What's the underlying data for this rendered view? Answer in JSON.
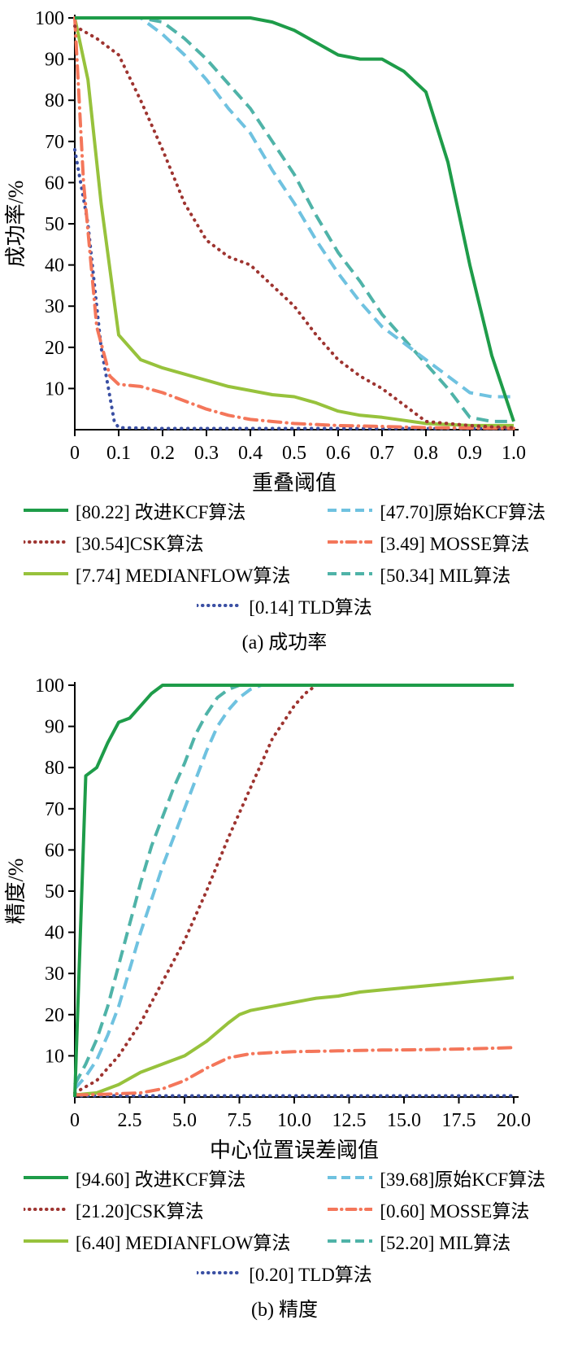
{
  "chart_data": [
    {
      "type": "line",
      "caption": "(a) 成功率",
      "xlabel": "重叠阈值",
      "ylabel": "成功率/%",
      "xlim": [
        0,
        1.0
      ],
      "ylim": [
        0,
        100
      ],
      "grid": false,
      "legend_position": "below",
      "xticks": {
        "values": [
          0,
          0.1,
          0.2,
          0.3,
          0.4,
          0.5,
          0.6,
          0.7,
          0.8,
          0.9,
          1.0
        ],
        "labels": [
          "0",
          "0.1",
          "0.2",
          "0.3",
          "0.4",
          "0.5",
          "0.6",
          "0.7",
          "0.8",
          "0.9",
          "1.0"
        ]
      },
      "yticks": {
        "values": [
          10,
          20,
          30,
          40,
          50,
          60,
          70,
          80,
          90,
          100
        ],
        "labels": [
          "10",
          "20",
          "30",
          "40",
          "50",
          "60",
          "70",
          "80",
          "90",
          "100"
        ]
      },
      "series": [
        {
          "name": "改进KCF算法",
          "legend": "[80.22] 改进KCF算法",
          "auc": 80.22,
          "color": "#1e9c49",
          "style": "solid",
          "x": [
            0,
            0.05,
            0.1,
            0.15,
            0.2,
            0.25,
            0.3,
            0.35,
            0.4,
            0.45,
            0.5,
            0.55,
            0.6,
            0.65,
            0.7,
            0.75,
            0.8,
            0.85,
            0.9,
            0.95,
            1.0
          ],
          "y": [
            100,
            100,
            100,
            100,
            100,
            100,
            100,
            100,
            100,
            99,
            97,
            94,
            91,
            90,
            90,
            87,
            82,
            65,
            40,
            18,
            2
          ]
        },
        {
          "name": "原始KCF算法",
          "legend": "[47.70]原始KCF算法",
          "auc": 47.7,
          "color": "#6fc2e0",
          "style": "dashed",
          "x": [
            0,
            0.05,
            0.1,
            0.15,
            0.2,
            0.25,
            0.3,
            0.35,
            0.4,
            0.45,
            0.5,
            0.55,
            0.6,
            0.65,
            0.7,
            0.75,
            0.8,
            0.85,
            0.9,
            0.95,
            1.0
          ],
          "y": [
            100,
            100,
            100,
            100,
            96,
            91,
            85,
            78,
            72,
            63,
            55,
            46,
            38,
            31,
            25,
            21,
            17,
            13,
            9,
            8,
            8
          ]
        },
        {
          "name": "CSK算法",
          "legend": "[30.54]CSK算法",
          "auc": 30.54,
          "color": "#9e3430",
          "style": "dotted",
          "x": [
            0,
            0.05,
            0.1,
            0.15,
            0.2,
            0.25,
            0.3,
            0.35,
            0.4,
            0.45,
            0.5,
            0.55,
            0.6,
            0.65,
            0.7,
            0.75,
            0.8,
            0.85,
            0.9,
            0.95,
            1.0
          ],
          "y": [
            98,
            95,
            91,
            80,
            68,
            55,
            46,
            42,
            40,
            35,
            30,
            23,
            17,
            13,
            10,
            6,
            2,
            1.5,
            1,
            0.7,
            0.5
          ]
        },
        {
          "name": "MOSSE算法",
          "legend": "[3.49] MOSSE算法",
          "auc": 3.49,
          "color": "#f4765a",
          "style": "dashdot",
          "x": [
            0,
            0.02,
            0.05,
            0.08,
            0.1,
            0.15,
            0.2,
            0.25,
            0.3,
            0.35,
            0.4,
            0.5,
            0.6,
            0.7,
            0.8,
            0.9,
            1.0
          ],
          "y": [
            100,
            60,
            25,
            13,
            11,
            10.5,
            9,
            7,
            5,
            3.5,
            2.5,
            1.5,
            1,
            0.8,
            0.5,
            0.4,
            0.3
          ]
        },
        {
          "name": "MEDIANFLOW算法",
          "legend": "[7.74] MEDIANFLOW算法",
          "auc": 7.74,
          "color": "#97c23c",
          "style": "solid",
          "x": [
            0,
            0.03,
            0.06,
            0.1,
            0.15,
            0.2,
            0.25,
            0.3,
            0.35,
            0.4,
            0.45,
            0.5,
            0.55,
            0.6,
            0.65,
            0.7,
            0.8,
            0.9,
            1.0
          ],
          "y": [
            100,
            85,
            55,
            23,
            17,
            15,
            13.5,
            12,
            10.5,
            9.5,
            8.5,
            8,
            6.5,
            4.5,
            3.5,
            3,
            1.5,
            1,
            1
          ]
        },
        {
          "name": "MIL算法",
          "legend": "[50.34] MIL算法",
          "auc": 50.34,
          "color": "#4fb3a8",
          "style": "dashed",
          "x": [
            0,
            0.05,
            0.1,
            0.15,
            0.2,
            0.25,
            0.3,
            0.35,
            0.4,
            0.45,
            0.5,
            0.55,
            0.6,
            0.65,
            0.7,
            0.75,
            0.8,
            0.85,
            0.9,
            0.95,
            1.0
          ],
          "y": [
            100,
            100,
            100,
            100,
            99,
            95,
            90,
            84,
            78,
            70,
            62,
            52,
            43,
            36,
            28,
            22,
            16,
            10,
            3,
            2,
            2
          ]
        },
        {
          "name": "TLD算法",
          "legend": "[0.14] TLD算法",
          "auc": 0.14,
          "color": "#3a4fa3",
          "style": "dotted",
          "x": [
            0,
            0.03,
            0.06,
            0.09,
            0.1,
            0.2,
            1.0
          ],
          "y": [
            68,
            50,
            20,
            2,
            0.5,
            0.3,
            0.3
          ]
        }
      ]
    },
    {
      "type": "line",
      "caption": "(b) 精度",
      "xlabel": "中心位置误差阈值",
      "ylabel": "精度/%",
      "xlim": [
        0,
        20
      ],
      "ylim": [
        0,
        100
      ],
      "grid": false,
      "legend_position": "below",
      "xticks": {
        "values": [
          0,
          2.5,
          5,
          7.5,
          10,
          12.5,
          15,
          17.5,
          20
        ],
        "labels": [
          "0",
          "2.5",
          "5.0",
          "7.5",
          "10.0",
          "12.5",
          "15.0",
          "17.5",
          "20.0"
        ]
      },
      "yticks": {
        "values": [
          10,
          20,
          30,
          40,
          50,
          60,
          70,
          80,
          90,
          100
        ],
        "labels": [
          "10",
          "20",
          "30",
          "40",
          "50",
          "60",
          "70",
          "80",
          "90",
          "100"
        ]
      },
      "series": [
        {
          "name": "改进KCF算法",
          "legend": "[94.60] 改进KCF算法",
          "auc": 94.6,
          "color": "#1e9c49",
          "style": "solid",
          "x": [
            0,
            0.5,
            1,
            1.5,
            2,
            2.5,
            3,
            3.5,
            4,
            5,
            20
          ],
          "y": [
            0,
            78,
            80,
            86,
            91,
            92,
            95,
            98,
            100,
            100,
            100
          ]
        },
        {
          "name": "原始KCF算法",
          "legend": "[39.68]原始KCF算法",
          "auc": 39.68,
          "color": "#6fc2e0",
          "style": "dashed",
          "x": [
            0,
            0.5,
            1,
            1.5,
            2,
            2.5,
            3,
            3.5,
            4,
            4.5,
            5,
            5.5,
            6,
            6.5,
            7,
            7.5,
            8,
            8.5,
            9,
            20
          ],
          "y": [
            2,
            5,
            9,
            15,
            22,
            31,
            40,
            48,
            56,
            63,
            70,
            77,
            84,
            90,
            94,
            97,
            99,
            100,
            100,
            100
          ]
        },
        {
          "name": "CSK算法",
          "legend": "[21.20]CSK算法",
          "auc": 21.2,
          "color": "#9e3430",
          "style": "dotted",
          "x": [
            0,
            1,
            2,
            3,
            4,
            5,
            6,
            7,
            8,
            9,
            10,
            10.5,
            11,
            20
          ],
          "y": [
            1,
            4,
            10,
            18,
            28,
            38,
            50,
            63,
            75,
            87,
            95,
            98,
            100,
            100
          ]
        },
        {
          "name": "MOSSE算法",
          "legend": "[0.60] MOSSE算法",
          "auc": 0.6,
          "color": "#f4765a",
          "style": "dashdot",
          "x": [
            0,
            1,
            2,
            3,
            4,
            5,
            6,
            7,
            7.5,
            8,
            9,
            10,
            12,
            14,
            16,
            18,
            20
          ],
          "y": [
            0.5,
            0.6,
            0.8,
            1,
            2,
            4,
            7,
            9.5,
            10,
            10.5,
            10.8,
            11,
            11.2,
            11.4,
            11.5,
            11.7,
            12
          ]
        },
        {
          "name": "MEDIANFLOW算法",
          "legend": "[6.40] MEDIANFLOW算法",
          "auc": 6.4,
          "color": "#97c23c",
          "style": "solid",
          "x": [
            0,
            1,
            2,
            3,
            4,
            5,
            6,
            7,
            7.5,
            8,
            9,
            10,
            11,
            12,
            13,
            14,
            15,
            16,
            17,
            18,
            19,
            20
          ],
          "y": [
            0.5,
            1,
            3,
            6,
            8,
            10,
            13.5,
            18,
            20,
            21,
            22,
            23,
            24,
            24.5,
            25.5,
            26,
            26.5,
            27,
            27.5,
            28,
            28.5,
            29
          ]
        },
        {
          "name": "MIL算法",
          "legend": "[52.20] MIL算法",
          "auc": 52.2,
          "color": "#4fb3a8",
          "style": "dashed",
          "x": [
            0,
            0.5,
            1,
            1.5,
            2,
            2.5,
            3,
            3.5,
            4,
            4.5,
            5,
            5.5,
            6,
            6.5,
            7,
            7.5,
            20
          ],
          "y": [
            3,
            8,
            14,
            22,
            32,
            42,
            52,
            61,
            68,
            75,
            81,
            88,
            93,
            97,
            99,
            100,
            100
          ]
        },
        {
          "name": "TLD算法",
          "legend": "[0.20] TLD算法",
          "auc": 0.2,
          "color": "#3a4fa3",
          "style": "dotted",
          "x": [
            0,
            20
          ],
          "y": [
            0.3,
            0.3
          ]
        }
      ]
    }
  ]
}
